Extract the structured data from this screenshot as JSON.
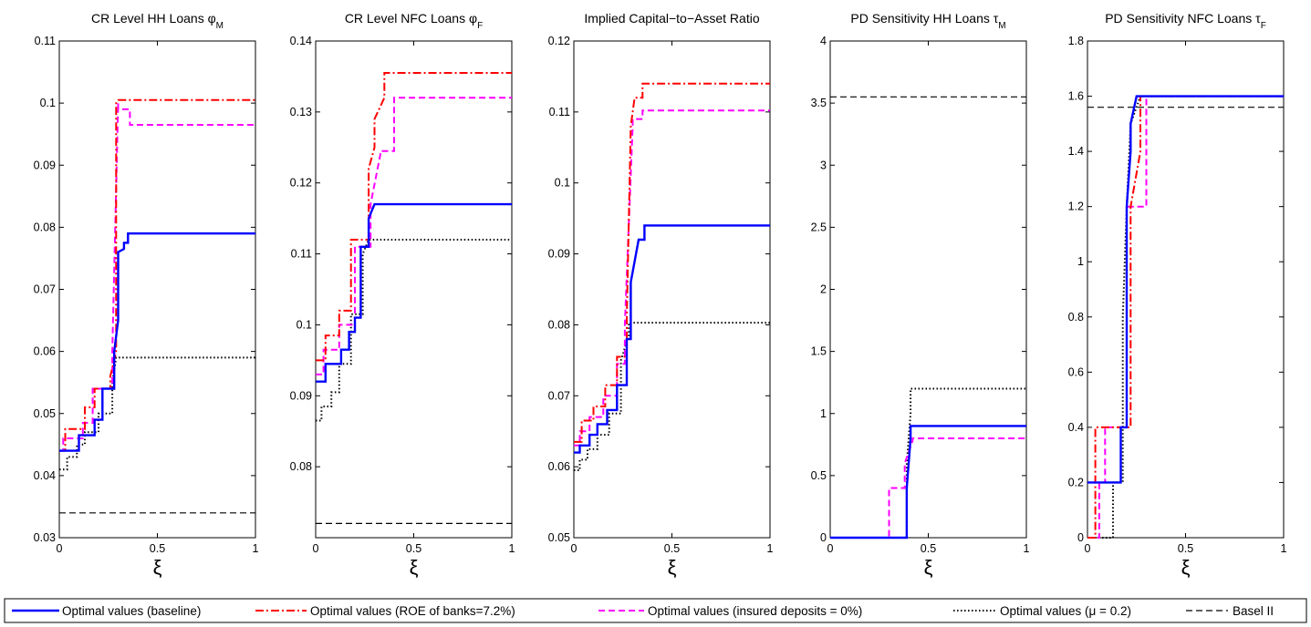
{
  "colors": {
    "baseline": "#0000ff",
    "roe": "#ff0000",
    "insured": "#ff00ff",
    "mu": "#000000",
    "basel": "#000000"
  },
  "legend": {
    "placement": "bottom",
    "entries": [
      {
        "key": "baseline",
        "label": "Optimal values (baseline)",
        "dash": "solid"
      },
      {
        "key": "roe",
        "label": "Optimal values (ROE of banks=7.2%)",
        "dash": "dashdot"
      },
      {
        "key": "insured",
        "label": "Optimal values (insured deposits = 0%)",
        "dash": "dashed"
      },
      {
        "key": "mu",
        "label": "Optimal values (μ = 0.2)",
        "dash": "dotted"
      },
      {
        "key": "basel",
        "label": "Basel II",
        "dash": "dashed"
      }
    ]
  },
  "chart_data": [
    {
      "type": "line",
      "title": "CR Level HH Loans φ",
      "title_sub": "M",
      "xlabel": "ξ",
      "xlim": [
        0,
        1
      ],
      "ylim": [
        0.03,
        0.11
      ],
      "xticks": [
        "0",
        "0.5",
        "1"
      ],
      "yticks": [
        "0.03",
        "0.04",
        "0.05",
        "0.06",
        "0.07",
        "0.08",
        "0.09",
        "0.1",
        "0.11"
      ],
      "series": [
        {
          "key": "baseline",
          "x": [
            0,
            0.1,
            0.1,
            0.18,
            0.18,
            0.22,
            0.22,
            0.28,
            0.28,
            0.3,
            0.3,
            0.33,
            0.33,
            0.35,
            0.35,
            1
          ],
          "y": [
            0.044,
            0.044,
            0.0465,
            0.0465,
            0.049,
            0.049,
            0.054,
            0.054,
            0.06,
            0.065,
            0.076,
            0.0765,
            0.0775,
            0.0775,
            0.079,
            0.079
          ]
        },
        {
          "key": "roe",
          "x": [
            0,
            0.03,
            0.03,
            0.13,
            0.13,
            0.18,
            0.18,
            0.26,
            0.26,
            0.29,
            0.29,
            0.3,
            1
          ],
          "y": [
            0.044,
            0.044,
            0.0475,
            0.0475,
            0.051,
            0.051,
            0.054,
            0.054,
            0.056,
            0.06,
            0.1,
            0.1005,
            0.1005
          ]
        },
        {
          "key": "insured",
          "x": [
            0,
            0.02,
            0.02,
            0.12,
            0.12,
            0.17,
            0.17,
            0.27,
            0.27,
            0.3,
            0.3,
            0.36,
            0.36,
            1
          ],
          "y": [
            0.044,
            0.044,
            0.046,
            0.046,
            0.0485,
            0.0485,
            0.054,
            0.054,
            0.06,
            0.1,
            0.099,
            0.099,
            0.0965,
            0.0965
          ]
        },
        {
          "key": "mu",
          "x": [
            0,
            0.04,
            0.04,
            0.09,
            0.09,
            0.13,
            0.13,
            0.2,
            0.2,
            0.27,
            0.27,
            0.29,
            1
          ],
          "y": [
            0.041,
            0.041,
            0.043,
            0.043,
            0.045,
            0.045,
            0.047,
            0.047,
            0.05,
            0.05,
            0.055,
            0.059,
            0.059
          ]
        },
        {
          "key": "basel",
          "x": [
            0,
            1
          ],
          "y": [
            0.034,
            0.034
          ]
        }
      ]
    },
    {
      "type": "line",
      "title": "CR Level NFC Loans φ",
      "title_sub": "F",
      "xlabel": "ξ",
      "xlim": [
        0,
        1
      ],
      "ylim": [
        0.07,
        0.14
      ],
      "xticks": [
        "0",
        "0.5",
        "1"
      ],
      "yticks": [
        "0.08",
        "0.09",
        "0.1",
        "0.11",
        "0.12",
        "0.13",
        "0.14"
      ],
      "series": [
        {
          "key": "baseline",
          "x": [
            0,
            0.05,
            0.05,
            0.13,
            0.13,
            0.17,
            0.17,
            0.2,
            0.2,
            0.23,
            0.23,
            0.27,
            0.27,
            0.3,
            1
          ],
          "y": [
            0.092,
            0.092,
            0.0945,
            0.0945,
            0.0965,
            0.0965,
            0.099,
            0.099,
            0.101,
            0.101,
            0.111,
            0.111,
            0.115,
            0.117,
            0.117
          ]
        },
        {
          "key": "roe",
          "x": [
            0,
            0.05,
            0.05,
            0.12,
            0.12,
            0.18,
            0.18,
            0.27,
            0.27,
            0.3,
            0.3,
            0.35,
            0.35,
            1
          ],
          "y": [
            0.095,
            0.095,
            0.0985,
            0.0985,
            0.102,
            0.102,
            0.112,
            0.112,
            0.122,
            0.125,
            0.129,
            0.132,
            0.1355,
            0.1355
          ]
        },
        {
          "key": "insured",
          "x": [
            0,
            0.04,
            0.04,
            0.12,
            0.12,
            0.2,
            0.2,
            0.28,
            0.28,
            0.33,
            0.33,
            0.4,
            0.4,
            1
          ],
          "y": [
            0.093,
            0.093,
            0.0965,
            0.0965,
            0.1,
            0.1,
            0.111,
            0.111,
            0.117,
            0.124,
            0.1245,
            0.1245,
            0.132,
            0.132
          ]
        },
        {
          "key": "mu",
          "x": [
            0,
            0.03,
            0.03,
            0.08,
            0.08,
            0.12,
            0.12,
            0.18,
            0.18,
            0.24,
            0.24,
            0.27,
            1
          ],
          "y": [
            0.0865,
            0.0865,
            0.0885,
            0.0885,
            0.0905,
            0.0905,
            0.0945,
            0.0945,
            0.1015,
            0.1015,
            0.11,
            0.112,
            0.112
          ]
        },
        {
          "key": "basel",
          "x": [
            0,
            1
          ],
          "y": [
            0.072,
            0.072
          ]
        }
      ]
    },
    {
      "type": "line",
      "title": "Implied Capital−to−Asset Ratio",
      "title_sub": "",
      "xlabel": "ξ",
      "xlim": [
        0,
        1
      ],
      "ylim": [
        0.05,
        0.12
      ],
      "xticks": [
        "0",
        "0.5",
        "1"
      ],
      "yticks": [
        "0.05",
        "0.06",
        "0.07",
        "0.08",
        "0.09",
        "0.1",
        "0.11",
        "0.12"
      ],
      "series": [
        {
          "key": "baseline",
          "x": [
            0,
            0.03,
            0.03,
            0.08,
            0.08,
            0.12,
            0.12,
            0.17,
            0.17,
            0.22,
            0.22,
            0.27,
            0.27,
            0.29,
            0.29,
            0.33,
            0.33,
            0.36,
            0.36,
            1
          ],
          "y": [
            0.062,
            0.062,
            0.063,
            0.063,
            0.0645,
            0.0645,
            0.066,
            0.066,
            0.068,
            0.068,
            0.0715,
            0.0715,
            0.078,
            0.078,
            0.086,
            0.092,
            0.092,
            0.092,
            0.094,
            0.094
          ]
        },
        {
          "key": "roe",
          "x": [
            0,
            0.04,
            0.04,
            0.1,
            0.1,
            0.16,
            0.16,
            0.22,
            0.22,
            0.27,
            0.27,
            0.29,
            0.3,
            0.31,
            0.35,
            0.35,
            1
          ],
          "y": [
            0.0635,
            0.0635,
            0.0665,
            0.0665,
            0.0685,
            0.0685,
            0.0715,
            0.0715,
            0.0755,
            0.0755,
            0.081,
            0.108,
            0.11,
            0.112,
            0.112,
            0.114,
            0.114
          ]
        },
        {
          "key": "insured",
          "x": [
            0,
            0.03,
            0.03,
            0.08,
            0.08,
            0.15,
            0.15,
            0.22,
            0.22,
            0.26,
            0.26,
            0.3,
            0.3,
            0.35,
            0.35,
            1
          ],
          "y": [
            0.063,
            0.063,
            0.065,
            0.065,
            0.067,
            0.067,
            0.07,
            0.07,
            0.0745,
            0.0745,
            0.08,
            0.108,
            0.109,
            0.109,
            0.1102,
            0.1102
          ]
        },
        {
          "key": "mu",
          "x": [
            0,
            0.03,
            0.03,
            0.07,
            0.07,
            0.12,
            0.12,
            0.18,
            0.18,
            0.24,
            0.24,
            0.28,
            0.28,
            1
          ],
          "y": [
            0.0595,
            0.0595,
            0.061,
            0.061,
            0.0625,
            0.0625,
            0.0645,
            0.0645,
            0.0675,
            0.0675,
            0.075,
            0.0785,
            0.0803,
            0.0803
          ]
        },
        {
          "key": "basel",
          "x": [],
          "y": []
        }
      ]
    },
    {
      "type": "line",
      "title": "PD Sensitivity HH Loans τ",
      "title_sub": "M",
      "xlabel": "ξ",
      "xlim": [
        0,
        1
      ],
      "ylim": [
        0,
        4
      ],
      "xticks": [
        "0",
        "0.5",
        "1"
      ],
      "yticks": [
        "0",
        "0.5",
        "1",
        "1.5",
        "2",
        "2.5",
        "3",
        "3.5",
        "4"
      ],
      "series": [
        {
          "key": "baseline",
          "x": [
            0,
            0.39,
            0.39,
            0.41,
            0.41,
            1
          ],
          "y": [
            0,
            0,
            0.4,
            0.8,
            0.9,
            0.9
          ]
        },
        {
          "key": "roe",
          "x": [],
          "y": []
        },
        {
          "key": "insured",
          "x": [
            0,
            0.3,
            0.3,
            0.38,
            0.38,
            0.42,
            0.42,
            1
          ],
          "y": [
            0,
            0,
            0.4,
            0.4,
            0.6,
            0.78,
            0.8,
            0.8
          ]
        },
        {
          "key": "mu",
          "x": [
            0,
            0.39,
            0.39,
            0.41,
            0.41,
            1
          ],
          "y": [
            0,
            0,
            0.6,
            1.0,
            1.2,
            1.2
          ]
        },
        {
          "key": "basel",
          "x": [
            0,
            1
          ],
          "y": [
            3.55,
            3.55
          ]
        }
      ]
    },
    {
      "type": "line",
      "title": "PD Sensitivity NFC Loans τ",
      "title_sub": "F",
      "xlabel": "ξ",
      "xlim": [
        0,
        1
      ],
      "ylim": [
        0,
        1.8
      ],
      "xticks": [
        "0",
        "0.5",
        "1"
      ],
      "yticks": [
        "0",
        "0.2",
        "0.4",
        "0.6",
        "0.8",
        "1",
        "1.2",
        "1.4",
        "1.6",
        "1.8"
      ],
      "series": [
        {
          "key": "baseline",
          "x": [
            0,
            0.17,
            0.17,
            0.2,
            0.2,
            0.22,
            0.22,
            0.25,
            1
          ],
          "y": [
            0.2,
            0.2,
            0.4,
            0.4,
            1.2,
            1.4,
            1.5,
            1.6,
            1.6
          ]
        },
        {
          "key": "roe",
          "x": [
            0,
            0.04,
            0.04,
            0.08,
            0.08,
            0.22,
            0.22,
            0.27,
            0.27,
            1
          ],
          "y": [
            0,
            0,
            0.4,
            0.4,
            0.4,
            0.4,
            1.2,
            1.4,
            1.6,
            1.6
          ]
        },
        {
          "key": "insured",
          "x": [
            0,
            0.06,
            0.06,
            0.09,
            0.09,
            0.2,
            0.2,
            0.3,
            0.3,
            1
          ],
          "y": [
            0,
            0,
            0.2,
            0.2,
            0.4,
            0.4,
            1.2,
            1.2,
            1.6,
            1.6
          ]
        },
        {
          "key": "mu",
          "x": [
            0,
            0.13,
            0.13,
            0.18,
            0.18,
            0.2,
            0.22,
            0.27,
            1
          ],
          "y": [
            0,
            0,
            0.2,
            0.2,
            0.8,
            1.2,
            1.5,
            1.6,
            1.6
          ]
        },
        {
          "key": "basel",
          "x": [
            0,
            1
          ],
          "y": [
            1.56,
            1.56
          ]
        }
      ]
    }
  ]
}
